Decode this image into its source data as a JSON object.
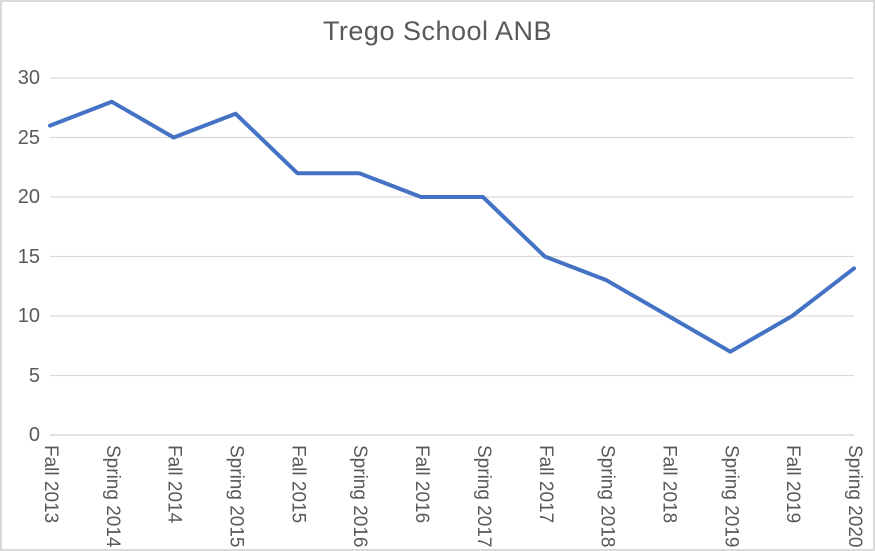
{
  "chart_data": {
    "type": "line",
    "title": "Trego School ANB",
    "categories": [
      "Fall 2013",
      "Spring 2014",
      "Fall 2014",
      "Spring 2015",
      "Fall 2015",
      "Spring 2016",
      "Fall 2016",
      "Spring 2017",
      "Fall 2017",
      "Spring 2018",
      "Fall 2018",
      "Spring 2019",
      "Fall 2019",
      "Spring 2020"
    ],
    "values": [
      26,
      28,
      25,
      27,
      22,
      22,
      20,
      20,
      15,
      13,
      10,
      7,
      10,
      14
    ],
    "xlabel": "",
    "ylabel": "",
    "ylim": [
      0,
      30
    ],
    "yticks": [
      0,
      5,
      10,
      15,
      20,
      25,
      30
    ],
    "grid": true,
    "legend_position": "none",
    "line_color": "#4472C4",
    "gridline_color": "#D9D9D9",
    "axis_line_color": "#D9D9D9",
    "text_color": "#595959",
    "border_color": "#D9D9D9",
    "background_color": "#FFFFFF"
  }
}
